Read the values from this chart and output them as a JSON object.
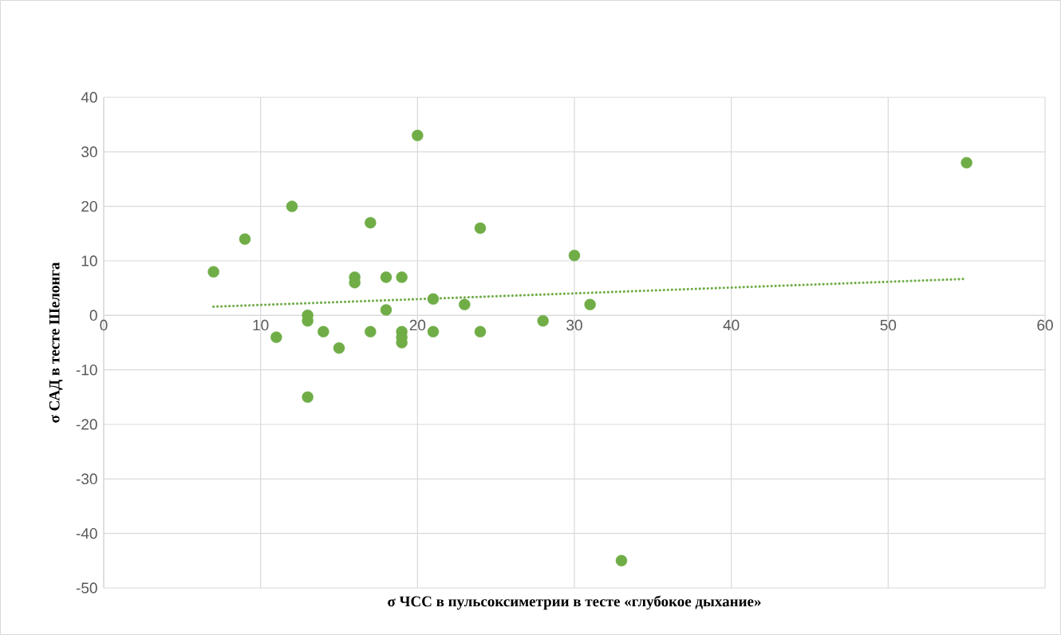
{
  "chart_data": {
    "type": "scatter",
    "xlabel": "σ ЧСС в пульсоксиметрии в тесте «глубокое дыхание»",
    "ylabel": "σ САД в тесте Шелонга",
    "xlim": [
      0,
      60
    ],
    "ylim": [
      -50,
      40
    ],
    "xticks": [
      0,
      10,
      20,
      30,
      40,
      50,
      60
    ],
    "yticks": [
      -50,
      -40,
      -30,
      -20,
      -10,
      0,
      10,
      20,
      30,
      40
    ],
    "grid": true,
    "series": [
      {
        "color": "#70ad47",
        "marker": "circle",
        "x": [
          7,
          9,
          11,
          12,
          13,
          13,
          13,
          14,
          15,
          16,
          16,
          17,
          17,
          18,
          18,
          19,
          19,
          19,
          19,
          20,
          21,
          21,
          23,
          24,
          24,
          28,
          30,
          31,
          33,
          55
        ],
        "values": [
          8,
          14,
          -4,
          20,
          0,
          -1,
          -15,
          -3,
          -6,
          7,
          6,
          17,
          -3,
          7,
          1,
          7,
          -3,
          -4,
          -5,
          33,
          3,
          -3,
          2,
          16,
          -3,
          -1,
          11,
          2,
          -45,
          28
        ]
      },
      {
        "type": "line",
        "color": "#70ad47",
        "marker": "none",
        "line_style": "dotted",
        "x": [
          7,
          55
        ],
        "values": [
          1.6,
          6.7
        ]
      }
    ]
  }
}
